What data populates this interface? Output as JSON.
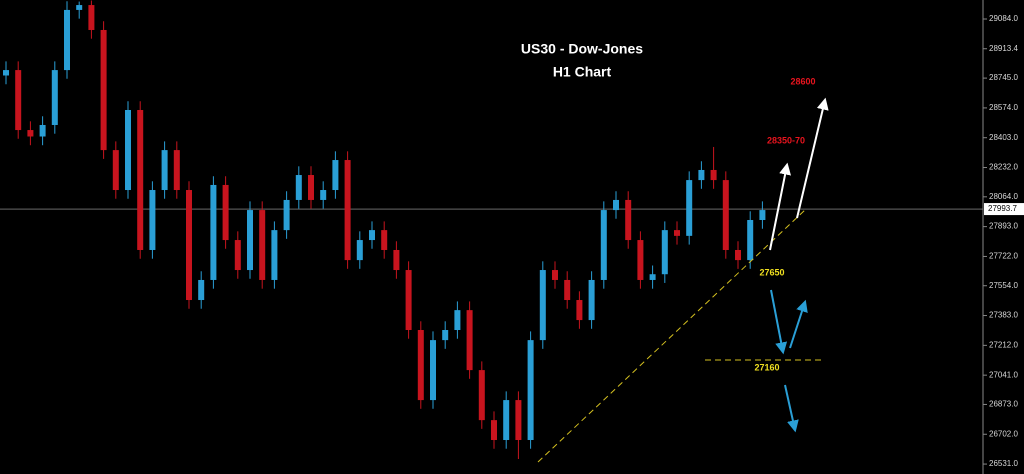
{
  "chart_data": {
    "type": "candlestick",
    "title": "US30 - Dow-Jones",
    "subtitle": "H1 Chart",
    "annotations": [
      "28600",
      "28350-70",
      "27650",
      "27160"
    ],
    "up_color": "#2a9fd6",
    "down_color": "#c8141e",
    "ylim": [
      26474,
      29193
    ],
    "yticks": [
      {
        "value": 29084.0,
        "label": "29084.0"
      },
      28913.4,
      {
        "value": 28745.0,
        "label": "28745.0"
      },
      {
        "value": 28574.0,
        "label": "28574.0"
      },
      {
        "value": 28403.0,
        "label": "28403.0"
      },
      {
        "value": 28232.0,
        "label": "28232.0"
      },
      {
        "value": 28064.0,
        "label": "28064.0"
      },
      {
        "value": 27893.0,
        "label": "27893.0"
      },
      {
        "value": 27722.0,
        "label": "27722.0"
      },
      {
        "value": 27554.0,
        "label": "27554.0"
      },
      {
        "value": 27383.0,
        "label": "27383.0"
      },
      {
        "value": 27212.0,
        "label": "27212.0"
      },
      {
        "value": 27041.0,
        "label": "27041.0"
      },
      {
        "value": 26873.0,
        "label": "26873.0"
      },
      {
        "value": 26702.0,
        "label": "26702.0"
      },
      {
        "value": 26531.0,
        "label": "26531.0"
      }
    ],
    "last_price": 27993.7,
    "open": [
      28760,
      28791,
      28447,
      28410,
      28476,
      28791,
      29136,
      29164,
      29021,
      28332,
      28103,
      28562,
      27759,
      28103,
      28332,
      28103,
      27472,
      27587,
      28132,
      27816,
      27644,
      27988,
      27587,
      27873,
      28046,
      28189,
      28046,
      28103,
      28275,
      27701,
      27816,
      27873,
      27759,
      27644,
      27300,
      26898,
      27242,
      27300,
      27414,
      27070,
      26783,
      26669,
      26898,
      26669,
      27242,
      27644,
      27587,
      27472,
      27357,
      27587,
      27988,
      28046,
      27816,
      27587,
      27620,
      27873,
      27840,
      28160,
      28218,
      28160,
      27759,
      27701,
      27931
    ],
    "high": [
      28841,
      28841,
      28497,
      28526,
      28841,
      29186,
      29184,
      29190,
      29071,
      28382,
      28612,
      28612,
      28153,
      28382,
      28382,
      28153,
      27637,
      28182,
      28182,
      27866,
      28038,
      28038,
      27923,
      28096,
      28239,
      28239,
      28153,
      28325,
      28325,
      27866,
      27923,
      27923,
      27809,
      27694,
      27350,
      27292,
      27350,
      27464,
      27464,
      27120,
      26833,
      26948,
      26948,
      27292,
      27694,
      27694,
      27637,
      27522,
      27637,
      28038,
      28096,
      28096,
      27866,
      27670,
      27923,
      27923,
      28210,
      28268,
      28350,
      28210,
      27809,
      27981,
      28038
    ],
    "low": [
      28710,
      28397,
      28360,
      28360,
      28426,
      28741,
      29086,
      28971,
      28282,
      28053,
      28053,
      27709,
      27709,
      28053,
      28053,
      27422,
      27422,
      27537,
      27766,
      27594,
      27594,
      27537,
      27537,
      27823,
      27996,
      27996,
      27996,
      28053,
      27651,
      27651,
      27766,
      27709,
      27594,
      27250,
      26848,
      26848,
      27192,
      27250,
      27020,
      26733,
      26619,
      26619,
      26560,
      26619,
      27192,
      27537,
      27422,
      27307,
      27307,
      27537,
      27938,
      27766,
      27537,
      27537,
      27570,
      27790,
      27790,
      28110,
      28110,
      27709,
      27651,
      27651,
      27881
    ],
    "close": [
      28791,
      28447,
      28410,
      28476,
      28791,
      29136,
      29164,
      29021,
      28332,
      28103,
      28562,
      27759,
      28103,
      28332,
      28103,
      27472,
      27587,
      28132,
      27816,
      27644,
      27988,
      27587,
      27873,
      28046,
      28189,
      28046,
      28103,
      28275,
      27701,
      27816,
      27873,
      27759,
      27644,
      27300,
      26898,
      27242,
      27300,
      27414,
      27070,
      26783,
      26669,
      26898,
      26669,
      27242,
      27644,
      27587,
      27472,
      27357,
      27587,
      27988,
      28046,
      27816,
      27587,
      27620,
      27873,
      27840,
      28160,
      28218,
      28160,
      27759,
      27701,
      27931,
      27988
    ]
  }
}
